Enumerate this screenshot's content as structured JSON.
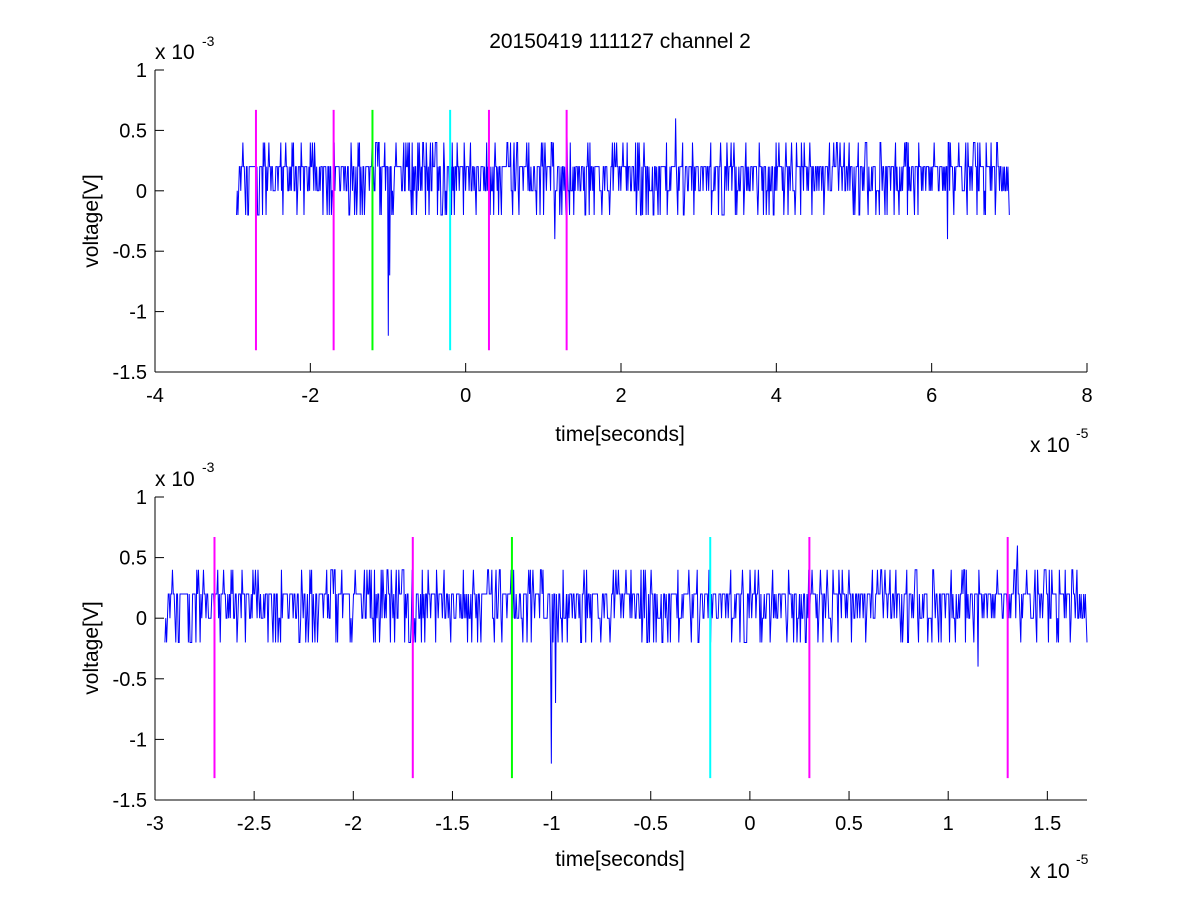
{
  "chart_data": [
    {
      "type": "line",
      "title": "20150419 111127 channel 2",
      "xlabel": "time[seconds]",
      "ylabel": "voltage[V]",
      "x_multiplier": {
        "base": "x 10",
        "exponent": "-5"
      },
      "y_multiplier": {
        "base": "x 10",
        "exponent": "-3"
      },
      "xlim": [
        -4e-05,
        8e-05
      ],
      "ylim": [
        -0.0015,
        0.001
      ],
      "x_ticks": [
        -4e-05,
        -2e-05,
        0,
        2e-05,
        4e-05,
        6e-05,
        8e-05
      ],
      "x_tick_labels": [
        "-4",
        "-2",
        "0",
        "2",
        "4",
        "6",
        "8"
      ],
      "y_ticks": [
        0.001,
        0.0005,
        0,
        -0.0005,
        -0.001,
        -0.0015
      ],
      "y_tick_labels": [
        "1",
        "0.5",
        "0",
        "-0.5",
        "-1",
        "-1.5"
      ],
      "grid": false,
      "signal": {
        "color": "#0000ff",
        "x_start": -2.95e-05,
        "x_end": 7e-05,
        "baseline_levels": [
          0,
          0.0002
        ],
        "spikes": [
          {
            "x": -1e-05,
            "y": -0.0012
          },
          {
            "x": -9.8e-06,
            "y": -0.0007
          },
          {
            "x": 1.15e-05,
            "y": -0.0004
          },
          {
            "x": 6.2e-05,
            "y": -0.0004
          },
          {
            "x": 2.7e-05,
            "y": 0.0006
          },
          {
            "x": 1.3e-05,
            "y": 0.0006
          }
        ]
      },
      "markers": [
        {
          "x": -2.7e-05,
          "color": "#ff00ff",
          "y_top": 0.00067,
          "y_bottom": -0.00132
        },
        {
          "x": -1.7e-05,
          "color": "#ff00ff",
          "y_top": 0.00067,
          "y_bottom": -0.00132
        },
        {
          "x": -1.2e-05,
          "color": "#00ff00",
          "y_top": 0.00067,
          "y_bottom": -0.00132
        },
        {
          "x": -2e-06,
          "color": "#00ffff",
          "y_top": 0.00067,
          "y_bottom": -0.00132
        },
        {
          "x": 3e-06,
          "color": "#ff00ff",
          "y_top": 0.00067,
          "y_bottom": -0.00132
        },
        {
          "x": 1.3e-05,
          "color": "#ff00ff",
          "y_top": 0.00067,
          "y_bottom": -0.00132
        }
      ]
    },
    {
      "type": "line",
      "title": "",
      "xlabel": "time[seconds]",
      "ylabel": "voltage[V]",
      "x_multiplier": {
        "base": "x 10",
        "exponent": "-5"
      },
      "y_multiplier": {
        "base": "x 10",
        "exponent": "-3"
      },
      "xlim": [
        -3e-05,
        1.7e-05
      ],
      "ylim": [
        -0.0015,
        0.001
      ],
      "x_ticks": [
        -3e-05,
        -2.5e-05,
        -2e-05,
        -1.5e-05,
        -1e-05,
        -5e-06,
        0,
        5e-06,
        1e-05,
        1.5e-05
      ],
      "x_tick_labels": [
        "-3",
        "-2.5",
        "-2",
        "-1.5",
        "-1",
        "-0.5",
        "0",
        "0.5",
        "1",
        "1.5"
      ],
      "y_ticks": [
        0.001,
        0.0005,
        0,
        -0.0005,
        -0.001,
        -0.0015
      ],
      "y_tick_labels": [
        "1",
        "0.5",
        "0",
        "-0.5",
        "-1",
        "-1.5"
      ],
      "grid": false,
      "signal": {
        "color": "#0000ff",
        "x_start": -2.95e-05,
        "x_end": 1.7e-05,
        "baseline_levels": [
          0,
          0.0002
        ],
        "spikes": [
          {
            "x": -1e-05,
            "y": -0.0012
          },
          {
            "x": -9.8e-06,
            "y": -0.0007
          },
          {
            "x": 1.15e-05,
            "y": -0.0004
          },
          {
            "x": 1.35e-05,
            "y": 0.0006
          },
          {
            "x": 1.65e-05,
            "y": 0.0004
          }
        ]
      },
      "markers": [
        {
          "x": -2.7e-05,
          "color": "#ff00ff",
          "y_top": 0.00067,
          "y_bottom": -0.00132
        },
        {
          "x": -1.7e-05,
          "color": "#ff00ff",
          "y_top": 0.00067,
          "y_bottom": -0.00132
        },
        {
          "x": -1.2e-05,
          "color": "#00ff00",
          "y_top": 0.00067,
          "y_bottom": -0.00132
        },
        {
          "x": -2e-06,
          "color": "#00ffff",
          "y_top": 0.00067,
          "y_bottom": -0.00132
        },
        {
          "x": 3e-06,
          "color": "#ff00ff",
          "y_top": 0.00067,
          "y_bottom": -0.00132
        },
        {
          "x": 1.3e-05,
          "color": "#ff00ff",
          "y_top": 0.00067,
          "y_bottom": -0.00132
        }
      ]
    }
  ]
}
